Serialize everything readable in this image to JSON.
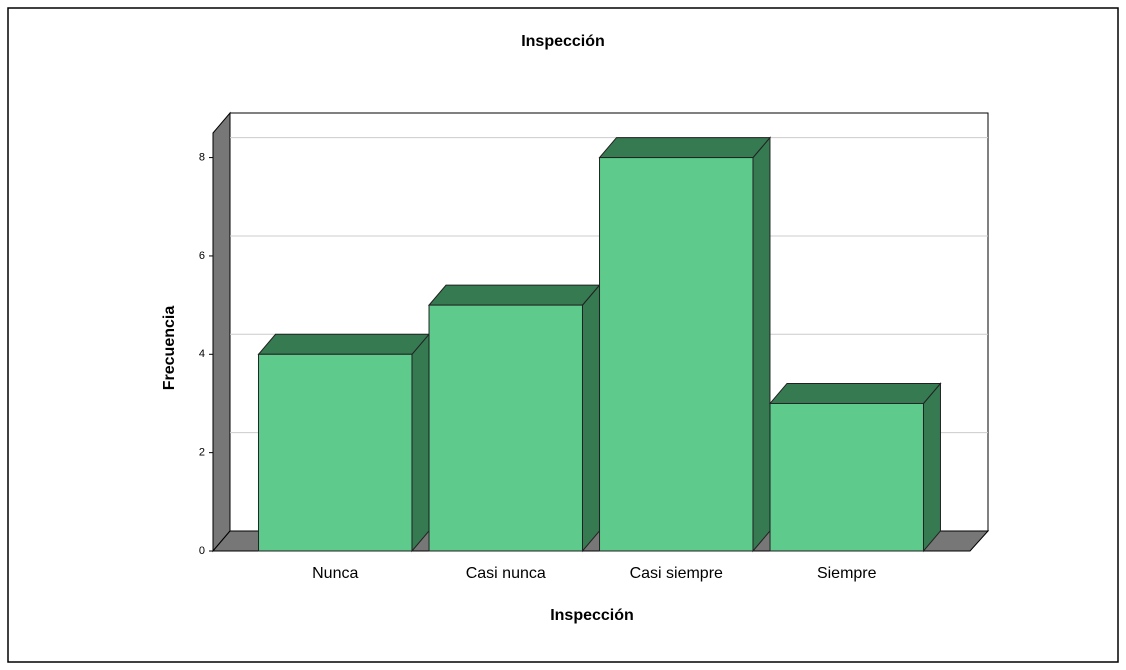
{
  "chart_data": {
    "type": "bar3d",
    "title": "Inspección",
    "x_label": "Inspección",
    "y_label": "Frecuencia",
    "categories": [
      "Nunca",
      "Casi nunca",
      "Casi siempre",
      "Siempre"
    ],
    "values": [
      4,
      5,
      8,
      3
    ],
    "color": "#5ecb8c",
    "ylim": [
      0,
      8.5
    ],
    "yticks": [
      0,
      2,
      4,
      6,
      8
    ],
    "grid": true
  }
}
